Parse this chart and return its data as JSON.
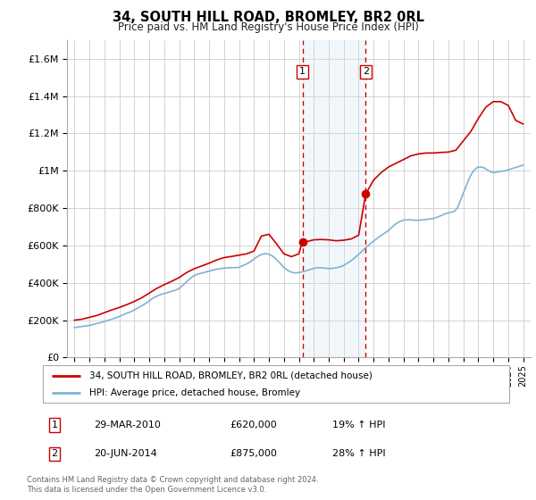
{
  "title": "34, SOUTH HILL ROAD, BROMLEY, BR2 0RL",
  "subtitle": "Price paid vs. HM Land Registry's House Price Index (HPI)",
  "legend_line1": "34, SOUTH HILL ROAD, BROMLEY, BR2 0RL (detached house)",
  "legend_line2": "HPI: Average price, detached house, Bromley",
  "footnote": "Contains HM Land Registry data © Crown copyright and database right 2024.\nThis data is licensed under the Open Government Licence v3.0.",
  "transactions": [
    {
      "num": 1,
      "date": "29-MAR-2010",
      "price": "£620,000",
      "hpi": "19% ↑ HPI",
      "year": 2010.24,
      "price_val": 620000
    },
    {
      "num": 2,
      "date": "20-JUN-2014",
      "price": "£875,000",
      "hpi": "28% ↑ HPI",
      "year": 2014.47,
      "price_val": 875000
    }
  ],
  "hpi_x": [
    1995.0,
    1995.1,
    1995.2,
    1995.3,
    1995.4,
    1995.5,
    1995.6,
    1995.7,
    1995.8,
    1995.9,
    1996.0,
    1996.2,
    1996.4,
    1996.6,
    1996.8,
    1997.0,
    1997.2,
    1997.4,
    1997.6,
    1997.8,
    1998.0,
    1998.2,
    1998.4,
    1998.6,
    1998.8,
    1999.0,
    1999.2,
    1999.4,
    1999.6,
    1999.8,
    2000.0,
    2000.2,
    2000.4,
    2000.6,
    2000.8,
    2001.0,
    2001.2,
    2001.4,
    2001.6,
    2001.8,
    2002.0,
    2002.2,
    2002.4,
    2002.6,
    2002.8,
    2003.0,
    2003.2,
    2003.4,
    2003.6,
    2003.8,
    2004.0,
    2004.2,
    2004.4,
    2004.6,
    2004.8,
    2005.0,
    2005.2,
    2005.4,
    2005.6,
    2005.8,
    2006.0,
    2006.2,
    2006.4,
    2006.6,
    2006.8,
    2007.0,
    2007.2,
    2007.4,
    2007.6,
    2007.8,
    2008.0,
    2008.2,
    2008.4,
    2008.6,
    2008.8,
    2009.0,
    2009.2,
    2009.4,
    2009.6,
    2009.8,
    2010.0,
    2010.2,
    2010.4,
    2010.6,
    2010.8,
    2011.0,
    2011.2,
    2011.4,
    2011.6,
    2011.8,
    2012.0,
    2012.2,
    2012.4,
    2012.6,
    2012.8,
    2013.0,
    2013.2,
    2013.4,
    2013.6,
    2013.8,
    2014.0,
    2014.2,
    2014.4,
    2014.6,
    2014.8,
    2015.0,
    2015.2,
    2015.4,
    2015.6,
    2015.8,
    2016.0,
    2016.2,
    2016.4,
    2016.6,
    2016.8,
    2017.0,
    2017.2,
    2017.4,
    2017.6,
    2017.8,
    2018.0,
    2018.2,
    2018.4,
    2018.6,
    2018.8,
    2019.0,
    2019.2,
    2019.4,
    2019.6,
    2019.8,
    2020.0,
    2020.2,
    2020.4,
    2020.6,
    2020.8,
    2021.0,
    2021.2,
    2021.4,
    2021.6,
    2021.8,
    2022.0,
    2022.2,
    2022.4,
    2022.6,
    2022.8,
    2023.0,
    2023.2,
    2023.4,
    2023.6,
    2023.8,
    2024.0,
    2024.2,
    2024.4,
    2024.6,
    2024.8,
    2025.0
  ],
  "hpi_y": [
    160000,
    161000,
    163000,
    164000,
    165000,
    166000,
    167000,
    168000,
    169000,
    170000,
    172000,
    176000,
    180000,
    184000,
    188000,
    193000,
    198000,
    203000,
    208000,
    213000,
    220000,
    227000,
    234000,
    240000,
    246000,
    255000,
    264000,
    273000,
    282000,
    291000,
    303000,
    315000,
    324000,
    332000,
    338000,
    342000,
    347000,
    352000,
    357000,
    362000,
    370000,
    383000,
    398000,
    413000,
    428000,
    438000,
    445000,
    450000,
    454000,
    458000,
    462000,
    467000,
    471000,
    474000,
    476000,
    478000,
    480000,
    481000,
    481000,
    481000,
    483000,
    490000,
    497000,
    505000,
    515000,
    527000,
    538000,
    548000,
    554000,
    556000,
    553000,
    545000,
    533000,
    517000,
    500000,
    483000,
    470000,
    460000,
    455000,
    453000,
    455000,
    458000,
    462000,
    467000,
    472000,
    477000,
    480000,
    481000,
    480000,
    478000,
    476000,
    477000,
    479000,
    482000,
    486000,
    493000,
    503000,
    513000,
    525000,
    538000,
    552000,
    567000,
    582000,
    597000,
    610000,
    623000,
    636000,
    648000,
    659000,
    669000,
    681000,
    695000,
    710000,
    722000,
    730000,
    735000,
    737000,
    737000,
    736000,
    735000,
    735000,
    736000,
    738000,
    740000,
    742000,
    745000,
    750000,
    756000,
    763000,
    770000,
    775000,
    778000,
    783000,
    800000,
    840000,
    880000,
    920000,
    960000,
    990000,
    1010000,
    1020000,
    1020000,
    1015000,
    1005000,
    995000,
    990000,
    992000,
    995000,
    998000,
    1000000,
    1005000,
    1010000,
    1015000,
    1020000,
    1025000,
    1030000
  ],
  "price_x": [
    1995.0,
    1995.5,
    1996.0,
    1996.5,
    1997.0,
    1997.5,
    1998.0,
    1998.5,
    1999.0,
    1999.5,
    2000.0,
    2000.5,
    2001.0,
    2001.5,
    2002.0,
    2002.5,
    2003.0,
    2003.5,
    2004.0,
    2004.5,
    2005.0,
    2005.5,
    2006.0,
    2006.5,
    2007.0,
    2007.5,
    2008.0,
    2008.5,
    2009.0,
    2009.5,
    2010.0,
    2010.24,
    2010.5,
    2011.0,
    2011.5,
    2012.0,
    2012.5,
    2013.0,
    2013.5,
    2014.0,
    2014.47,
    2015.0,
    2015.5,
    2016.0,
    2016.5,
    2017.0,
    2017.5,
    2018.0,
    2018.5,
    2019.0,
    2019.5,
    2020.0,
    2020.5,
    2021.0,
    2021.5,
    2022.0,
    2022.5,
    2023.0,
    2023.5,
    2024.0,
    2024.5,
    2025.0
  ],
  "price_y": [
    200000,
    205000,
    215000,
    225000,
    240000,
    255000,
    268000,
    283000,
    300000,
    320000,
    345000,
    370000,
    390000,
    408000,
    428000,
    455000,
    475000,
    490000,
    505000,
    522000,
    535000,
    541000,
    548000,
    555000,
    570000,
    650000,
    660000,
    610000,
    555000,
    540000,
    555000,
    620000,
    620000,
    630000,
    632000,
    630000,
    625000,
    628000,
    635000,
    655000,
    875000,
    950000,
    990000,
    1020000,
    1040000,
    1060000,
    1080000,
    1090000,
    1095000,
    1095000,
    1098000,
    1100000,
    1110000,
    1160000,
    1210000,
    1280000,
    1340000,
    1370000,
    1370000,
    1350000,
    1270000,
    1250000
  ],
  "ylim": [
    0,
    1700000
  ],
  "xlim": [
    1994.5,
    2025.5
  ],
  "yticks": [
    0,
    200000,
    400000,
    600000,
    800000,
    1000000,
    1200000,
    1400000,
    1600000
  ],
  "red_color": "#cc0000",
  "blue_color": "#7fb3d3",
  "shade_color": "#cce0f0",
  "vline_color": "#cc0000",
  "grid_color": "#cccccc",
  "bg_color": "#ffffff"
}
